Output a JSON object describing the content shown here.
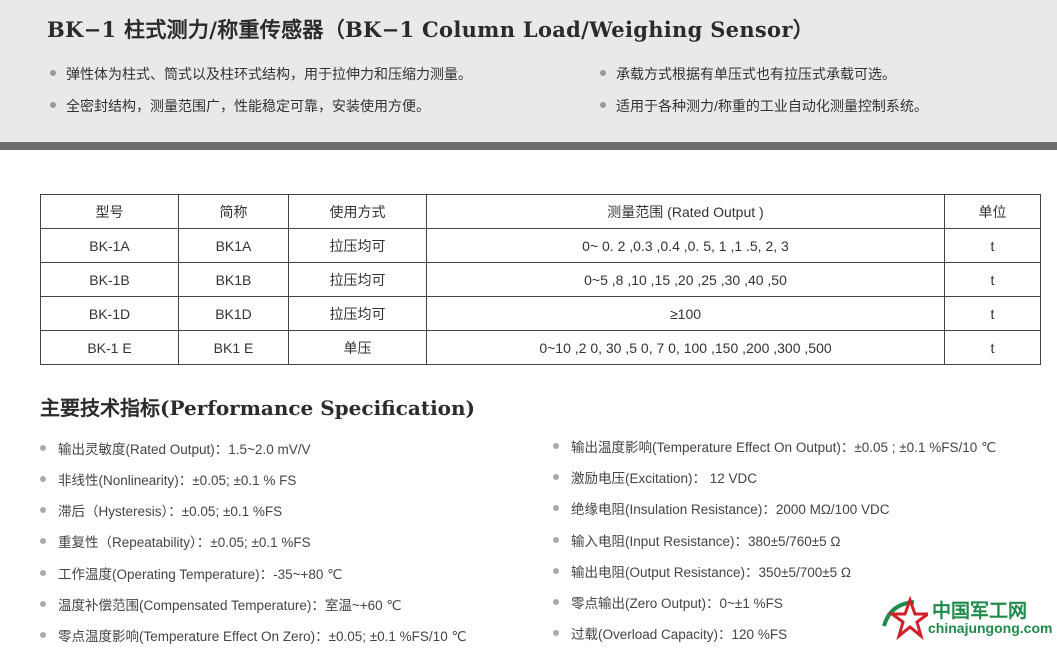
{
  "title": "BK−1  柱式测力/称重传感器（BK−1 Column Load/Weighing Sensor）",
  "features": [
    "弹性体为柱式、筒式以及柱环式结构，用于拉伸力和压缩力测量。",
    "全密封结构，测量范围广，性能稳定可靠，安装使用方便。",
    "承载方式根据有单压式也有拉压式承载可选。",
    "适用于各种测力/称重的工业自动化测量控制系统。"
  ],
  "table": {
    "headers": [
      "型号",
      "简称",
      "使用方式",
      "测量范围 (Rated Output )",
      "单位"
    ],
    "rows": [
      [
        "BK-1A",
        "BK1A",
        "拉压均可",
        "0~ 0. 2 ,0.3 ,0.4 ,0. 5, 1 ,1 .5, 2, 3",
        "t"
      ],
      [
        "BK-1B",
        "BK1B",
        "拉压均可",
        "0~5 ,8 ,10 ,15 ,20 ,25 ,30 ,40 ,50",
        "t"
      ],
      [
        "BK-1D",
        "BK1D",
        "拉压均可",
        "≥100",
        "t"
      ],
      [
        "BK-1 E",
        "BK1 E",
        "单压",
        "0~10 ,2 0, 30 ,5 0, 7 0, 100 ,150 ,200 ,300 ,500",
        "t"
      ]
    ]
  },
  "spec_title": "主要技术指标(Performance Specification)",
  "specs_left": [
    "输出灵敏度(Rated Output)：1.5~2.0  mV/V",
    "非线性(Nonlinearity)：±0.05; ±0.1 % FS",
    "滞后（Hysteresis）：±0.05; ±0.1 %FS",
    "重复性（Repeatability）：±0.05; ±0.1 %FS",
    "工作温度(Operating Temperature)：-35~+80 ℃",
    "温度补偿范围(Compensated Temperature)：室温~+60 ℃",
    "零点温度影响(Temperature Effect On Zero)：±0.05; ±0.1 %FS/10 ℃"
  ],
  "specs_right": [
    "输出温度影响(Temperature Effect On Output)：±0.05 ; ±0.1 %FS/10 ℃",
    "激励电压(Excitation)： 12 VDC",
    "绝缘电阻(Insulation Resistance)：2000 MΩ/100 VDC",
    "输入电阻(Input Resistance)：380±5/760±5 Ω",
    "输出电阻(Output Resistance)：350±5/700±5 Ω",
    "零点输出(Zero Output)：0~±1 %FS",
    "过载(Overload Capacity)：120 %FS"
  ],
  "watermark": {
    "cn": "中国军工网",
    "en": "chinajungong.com"
  }
}
